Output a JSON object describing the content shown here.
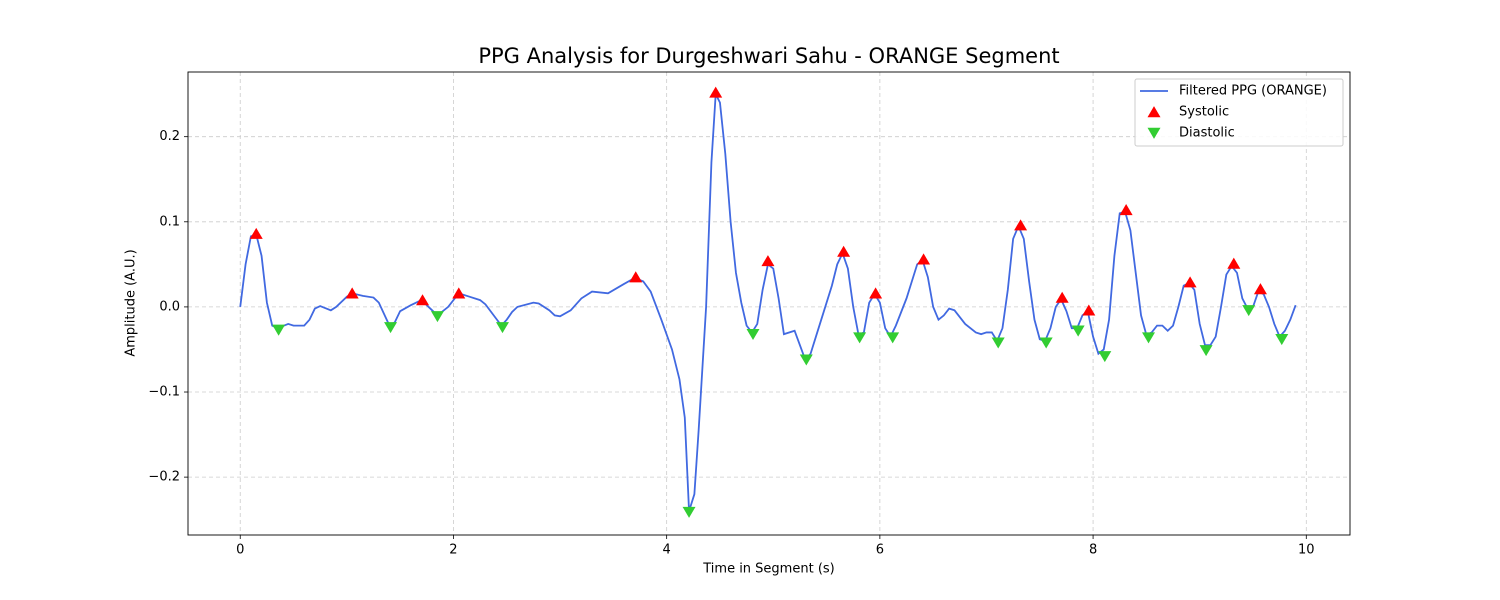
{
  "chart_data": {
    "type": "line",
    "title": "PPG Analysis for Durgeshwari Sahu - ORANGE Segment",
    "x_label": "Time in Segment (s)",
    "y_label": "Amplitude (A.U.)",
    "xlim": [
      -0.49,
      10.41
    ],
    "ylim": [
      -0.268,
      0.276
    ],
    "xticks": [
      0,
      2,
      4,
      6,
      8,
      10
    ],
    "yticks": [
      {
        "value": -0.2,
        "label": "−0.2"
      },
      {
        "value": -0.1,
        "label": "−0.1"
      },
      {
        "value": 0,
        "label": "0.0"
      },
      0.1,
      0.2
    ],
    "grid": true,
    "legend": "upper right",
    "series": [
      {
        "name": "Filtered PPG (ORANGE)",
        "color": "#4169e1",
        "x": [
          0,
          0.05,
          0.1,
          0.15,
          0.2,
          0.25,
          0.3,
          0.35,
          0.45,
          0.5,
          0.6,
          0.65,
          0.7,
          0.75,
          0.85,
          0.9,
          1.0,
          1.05,
          1.15,
          1.25,
          1.3,
          1.4,
          1.45,
          1.5,
          1.6,
          1.7,
          1.8,
          1.85,
          1.95,
          2.05,
          2.15,
          2.25,
          2.3,
          2.45,
          2.5,
          2.55,
          2.6,
          2.75,
          2.8,
          2.9,
          2.95,
          3.0,
          3.1,
          3.2,
          3.3,
          3.45,
          3.6,
          3.7,
          3.78,
          3.85,
          3.95,
          4.05,
          4.12,
          4.17,
          4.21,
          4.26,
          4.3,
          4.37,
          4.42,
          4.46,
          4.5,
          4.55,
          4.6,
          4.65,
          4.7,
          4.75,
          4.8,
          4.85,
          4.9,
          4.95,
          5.0,
          5.05,
          5.1,
          5.2,
          5.25,
          5.3,
          5.35,
          5.4,
          5.45,
          5.55,
          5.6,
          5.65,
          5.7,
          5.75,
          5.8,
          5.85,
          5.9,
          5.95,
          6.0,
          6.05,
          6.1,
          6.15,
          6.25,
          6.3,
          6.35,
          6.4,
          6.45,
          6.5,
          6.55,
          6.6,
          6.65,
          6.7,
          6.8,
          6.9,
          6.95,
          7.0,
          7.05,
          7.1,
          7.15,
          7.2,
          7.25,
          7.3,
          7.35,
          7.4,
          7.45,
          7.5,
          7.55,
          7.6,
          7.65,
          7.7,
          7.75,
          7.8,
          7.85,
          7.9,
          7.95,
          8.0,
          8.05,
          8.1,
          8.15,
          8.2,
          8.25,
          8.3,
          8.35,
          8.4,
          8.45,
          8.5,
          8.55,
          8.6,
          8.65,
          8.7,
          8.75,
          8.8,
          8.85,
          8.9,
          8.95,
          9.0,
          9.05,
          9.1,
          9.15,
          9.2,
          9.25,
          9.3,
          9.35,
          9.4,
          9.45,
          9.5,
          9.55,
          9.6,
          9.65,
          9.7,
          9.75,
          9.8,
          9.85,
          9.9
        ],
        "values": [
          0,
          0.05,
          0.083,
          0.085,
          0.06,
          0.005,
          -0.022,
          -0.025,
          -0.02,
          -0.022,
          -0.022,
          -0.015,
          -0.002,
          0.001,
          -0.004,
          0,
          0.012,
          0.016,
          0.013,
          0.011,
          0.005,
          -0.022,
          -0.018,
          -0.005,
          0.002,
          0.008,
          -0.004,
          -0.01,
          0,
          0.016,
          0.012,
          0.008,
          0.003,
          -0.022,
          -0.015,
          -0.006,
          0,
          0.005,
          0.004,
          -0.004,
          -0.01,
          -0.011,
          -0.004,
          0.01,
          0.018,
          0.016,
          0.027,
          0.034,
          0.03,
          0.018,
          -0.015,
          -0.05,
          -0.085,
          -0.13,
          -0.24,
          -0.22,
          -0.145,
          0,
          0.17,
          0.25,
          0.24,
          0.18,
          0.1,
          0.04,
          0.005,
          -0.022,
          -0.03,
          -0.02,
          0.02,
          0.05,
          0.045,
          0.01,
          -0.032,
          -0.028,
          -0.045,
          -0.062,
          -0.055,
          -0.035,
          -0.015,
          0.025,
          0.05,
          0.063,
          0.045,
          0,
          -0.033,
          -0.03,
          0.005,
          0.015,
          0.005,
          -0.025,
          -0.035,
          -0.022,
          0.01,
          0.03,
          0.05,
          0.055,
          0.035,
          0,
          -0.015,
          -0.01,
          -0.002,
          -0.004,
          -0.02,
          -0.03,
          -0.032,
          -0.03,
          -0.03,
          -0.04,
          -0.025,
          0.02,
          0.08,
          0.095,
          0.08,
          0.03,
          -0.015,
          -0.038,
          -0.04,
          -0.025,
          0,
          0.009,
          -0.005,
          -0.025,
          -0.025,
          -0.01,
          -0.005,
          -0.035,
          -0.055,
          -0.05,
          -0.015,
          0.06,
          0.11,
          0.112,
          0.09,
          0.04,
          -0.01,
          -0.033,
          -0.03,
          -0.022,
          -0.022,
          -0.028,
          -0.022,
          0,
          0.025,
          0.028,
          0.02,
          -0.02,
          -0.045,
          -0.045,
          -0.035,
          0,
          0.038,
          0.048,
          0.04,
          0.01,
          -0.002,
          0,
          0.018,
          0.015,
          0,
          -0.02,
          -0.035,
          -0.028,
          -0.015,
          0.002
        ]
      },
      {
        "name": "Systolic",
        "color": "#ff0000",
        "marker": "^",
        "x": [
          0.15,
          1.05,
          1.71,
          2.05,
          3.71,
          4.46,
          4.95,
          5.66,
          5.96,
          6.41,
          7.32,
          7.71,
          7.96,
          8.31,
          8.91,
          9.32,
          9.57
        ],
        "values": [
          0.086,
          0.016,
          0.008,
          0.016,
          0.035,
          0.252,
          0.054,
          0.065,
          0.016,
          0.056,
          0.096,
          0.011,
          -0.004,
          0.114,
          0.029,
          0.051,
          0.021
        ]
      },
      {
        "name": "Diastolic",
        "color": "#32cd32",
        "marker": "v",
        "x": [
          0.36,
          1.41,
          1.85,
          2.46,
          4.21,
          4.81,
          5.31,
          5.81,
          6.12,
          7.11,
          7.56,
          7.86,
          8.11,
          8.52,
          9.06,
          9.46,
          9.77
        ],
        "values": [
          -0.027,
          -0.024,
          -0.011,
          -0.024,
          -0.241,
          -0.032,
          -0.062,
          -0.036,
          -0.036,
          -0.042,
          -0.042,
          -0.028,
          -0.058,
          -0.036,
          -0.051,
          -0.004,
          -0.038
        ]
      }
    ]
  }
}
